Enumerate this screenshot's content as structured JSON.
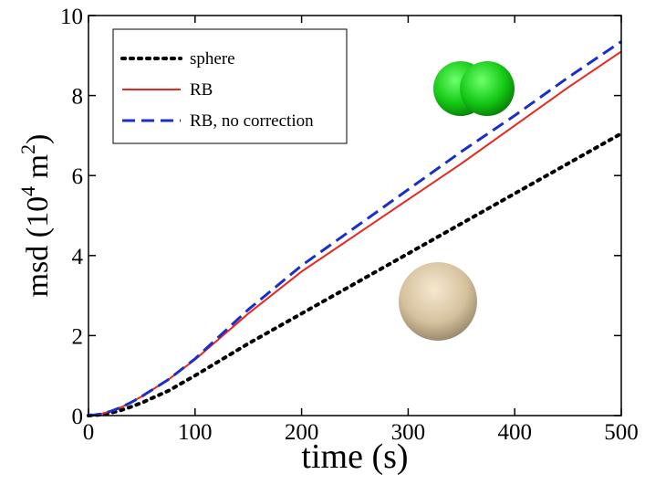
{
  "chart_data": {
    "type": "line",
    "x_label": "time (s)",
    "y_label_parts": [
      "msd (10",
      "4",
      " m",
      "2",
      ")"
    ],
    "x": [
      0,
      10,
      20,
      30,
      40,
      50,
      75,
      100,
      150,
      200,
      250,
      300,
      350,
      400,
      450,
      500
    ],
    "series": [
      {
        "name": "sphere",
        "color": "#000000",
        "dash": "dotted",
        "values": [
          0,
          0.02,
          0.06,
          0.13,
          0.22,
          0.32,
          0.62,
          1.0,
          1.8,
          2.55,
          3.3,
          4.05,
          4.8,
          5.55,
          6.3,
          7.05
        ]
      },
      {
        "name": "RB",
        "color": "#e8281e",
        "dash": "solid",
        "values": [
          0,
          0.03,
          0.1,
          0.2,
          0.33,
          0.48,
          0.9,
          1.4,
          2.55,
          3.6,
          4.5,
          5.4,
          6.3,
          7.25,
          8.2,
          9.1
        ]
      },
      {
        "name": "RB, no correction",
        "color": "#1a2ec8",
        "dash": "dashed",
        "values": [
          0,
          0.03,
          0.1,
          0.2,
          0.33,
          0.48,
          0.9,
          1.42,
          2.65,
          3.75,
          4.7,
          5.65,
          6.6,
          7.5,
          8.45,
          9.35
        ]
      }
    ],
    "xlim": [
      0,
      500
    ],
    "xticks": [
      0,
      100,
      200,
      300,
      400,
      500
    ],
    "ylim": [
      0,
      10
    ],
    "yticks": [
      0,
      2,
      4,
      6,
      8,
      10
    ],
    "legend": "upper left",
    "grid": false
  }
}
